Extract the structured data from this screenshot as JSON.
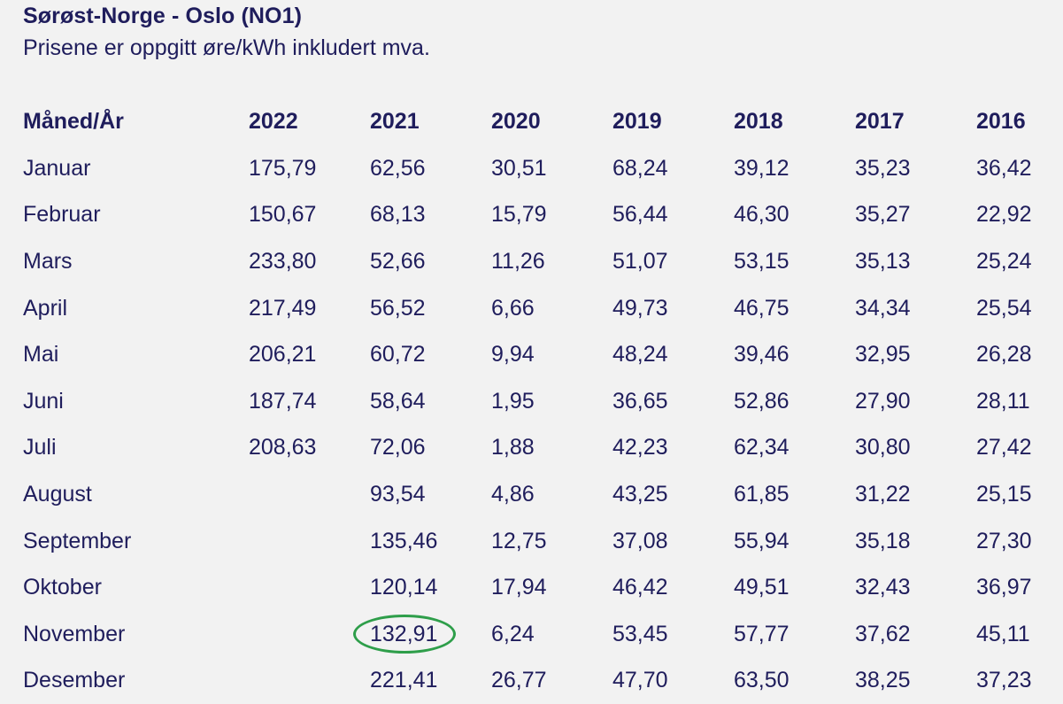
{
  "header": {
    "title": "Sørøst-Norge - Oslo (NO1)",
    "subtitle": "Prisene er oppgitt øre/kWh inkludert mva."
  },
  "table": {
    "corner": "Måned/År",
    "years": [
      "2022",
      "2021",
      "2020",
      "2019",
      "2018",
      "2017",
      "2016"
    ],
    "rows": [
      {
        "month": "Januar",
        "values": [
          "175,79",
          "62,56",
          "30,51",
          "68,24",
          "39,12",
          "35,23",
          "36,42"
        ]
      },
      {
        "month": "Februar",
        "values": [
          "150,67",
          "68,13",
          "15,79",
          "56,44",
          "46,30",
          "35,27",
          "22,92"
        ]
      },
      {
        "month": "Mars",
        "values": [
          "233,80",
          "52,66",
          "11,26",
          "51,07",
          "53,15",
          "35,13",
          "25,24"
        ]
      },
      {
        "month": "April",
        "values": [
          "217,49",
          "56,52",
          "6,66",
          "49,73",
          "46,75",
          "34,34",
          "25,54"
        ]
      },
      {
        "month": "Mai",
        "values": [
          "206,21",
          "60,72",
          "9,94",
          "48,24",
          "39,46",
          "32,95",
          "26,28"
        ]
      },
      {
        "month": "Juni",
        "values": [
          "187,74",
          "58,64",
          "1,95",
          "36,65",
          "52,86",
          "27,90",
          "28,11"
        ]
      },
      {
        "month": "Juli",
        "values": [
          "208,63",
          "72,06",
          "1,88",
          "42,23",
          "62,34",
          "30,80",
          "27,42"
        ]
      },
      {
        "month": "August",
        "values": [
          "",
          "93,54",
          "4,86",
          "43,25",
          "61,85",
          "31,22",
          "25,15"
        ]
      },
      {
        "month": "September",
        "values": [
          "",
          "135,46",
          "12,75",
          "37,08",
          "55,94",
          "35,18",
          "27,30"
        ]
      },
      {
        "month": "Oktober",
        "values": [
          "",
          "120,14",
          "17,94",
          "46,42",
          "49,51",
          "32,43",
          "36,97"
        ]
      },
      {
        "month": "November",
        "values": [
          "",
          "132,91",
          "6,24",
          "53,45",
          "57,77",
          "37,62",
          "45,11"
        ]
      },
      {
        "month": "Desember",
        "values": [
          "",
          "221,41",
          "26,77",
          "47,70",
          "63,50",
          "38,25",
          "37,23"
        ]
      }
    ]
  },
  "annotation": {
    "highlight": {
      "month": "November",
      "year": "2021"
    },
    "color": "#2e9e4a"
  }
}
